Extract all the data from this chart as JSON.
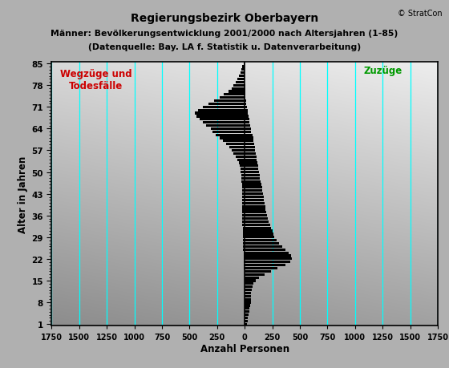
{
  "title_line1": "Regierungsbezirk Oberbayern",
  "title_line2": "Männer: Bevölkerungsentwicklung 2001/2000 nach Altersjahren (1-85)",
  "title_line3": "(Datenquelle: Bay. LA f. Statistik u. Datenverarbeitung)",
  "xlabel": "Anzahl Personen",
  "ylabel": "Alter in Jahren",
  "copyright": "© StratCon",
  "label_left": "Wegzüge und\nTodesfälle",
  "label_right": "Zuzüge",
  "xlim": [
    -1750,
    1750
  ],
  "xticks": [
    -1750,
    -1500,
    -1250,
    -1000,
    -750,
    -500,
    -250,
    0,
    250,
    500,
    750,
    1000,
    1250,
    1500,
    1750
  ],
  "xtick_labels": [
    "1750",
    "1500",
    "1250",
    "1000",
    "750",
    "500",
    "250",
    "0",
    "250",
    "500",
    "750",
    "1000",
    "1250",
    "1500",
    "1750"
  ],
  "ytick_positions": [
    1,
    8,
    15,
    22,
    29,
    36,
    43,
    50,
    57,
    64,
    71,
    78,
    85
  ],
  "ages": [
    1,
    2,
    3,
    4,
    5,
    6,
    7,
    8,
    9,
    10,
    11,
    12,
    13,
    14,
    15,
    16,
    17,
    18,
    19,
    20,
    21,
    22,
    23,
    24,
    25,
    26,
    27,
    28,
    29,
    30,
    31,
    32,
    33,
    34,
    35,
    36,
    37,
    38,
    39,
    40,
    41,
    42,
    43,
    44,
    45,
    46,
    47,
    48,
    49,
    50,
    51,
    52,
    53,
    54,
    55,
    56,
    57,
    58,
    59,
    60,
    61,
    62,
    63,
    64,
    65,
    66,
    67,
    68,
    69,
    70,
    71,
    72,
    73,
    74,
    75,
    76,
    77,
    78,
    79,
    80,
    81,
    82,
    83,
    84,
    85
  ],
  "negative_values": [
    -5,
    -5,
    -5,
    -5,
    -5,
    -5,
    -5,
    -5,
    -5,
    -5,
    -5,
    -5,
    -5,
    -5,
    -5,
    -5,
    -5,
    -5,
    -10,
    -10,
    -10,
    -10,
    -10,
    -10,
    -15,
    -15,
    -15,
    -15,
    -15,
    -15,
    -15,
    -15,
    -20,
    -20,
    -20,
    -20,
    -20,
    -20,
    -20,
    -20,
    -20,
    -25,
    -25,
    -25,
    -25,
    -25,
    -30,
    -30,
    -30,
    -35,
    -40,
    -45,
    -55,
    -65,
    -80,
    -100,
    -120,
    -140,
    -170,
    -200,
    -230,
    -260,
    -290,
    -310,
    -350,
    -380,
    -410,
    -440,
    -450,
    -420,
    -380,
    -330,
    -280,
    -230,
    -190,
    -150,
    -120,
    -100,
    -80,
    -65,
    -50,
    -40,
    -30,
    -20,
    -10
  ],
  "positive_values": [
    20,
    25,
    30,
    35,
    40,
    45,
    50,
    55,
    55,
    55,
    60,
    65,
    70,
    80,
    100,
    130,
    180,
    240,
    300,
    370,
    410,
    430,
    420,
    400,
    370,
    340,
    310,
    290,
    270,
    260,
    250,
    240,
    230,
    220,
    210,
    200,
    195,
    190,
    185,
    180,
    175,
    170,
    165,
    160,
    155,
    150,
    145,
    140,
    135,
    130,
    125,
    120,
    115,
    110,
    105,
    100,
    95,
    90,
    85,
    80,
    75,
    70,
    60,
    55,
    50,
    45,
    40,
    35,
    30,
    25,
    20,
    15,
    10,
    8,
    6,
    5,
    4,
    3,
    2,
    1,
    1,
    1,
    0,
    0,
    0
  ],
  "bar_color": "#000000",
  "grid_color": "#00ffff",
  "border_color": "#000000",
  "title_color": "#000000",
  "label_left_color": "#cc0000",
  "label_right_color": "#009900",
  "fig_bg_color": "#b0b0b0"
}
